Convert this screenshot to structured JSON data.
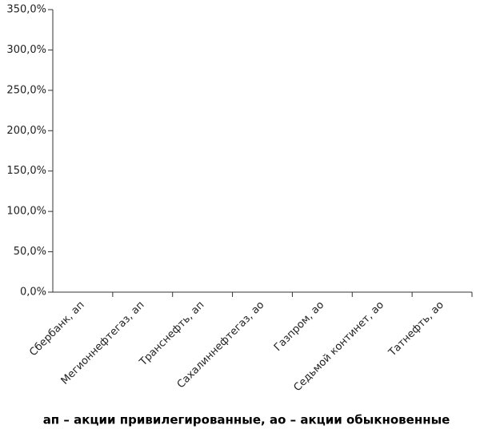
{
  "chart_data": {
    "type": "bar",
    "categories": [
      "Сбербанк, ап",
      "Мегионнефтегаз, ап",
      "Транснефть, ап",
      "Сахалиннефтегаз, ао",
      "Газпром, ао",
      "Седьмой континет, ао",
      "Татнефть, ао"
    ],
    "values": [
      null,
      null,
      null,
      null,
      null,
      null,
      null
    ],
    "color": "#808080",
    "ylim": [
      0,
      350
    ],
    "yticks": [
      {
        "value": 0,
        "label": "0,0%"
      },
      {
        "value": 50,
        "label": "50,0%"
      },
      {
        "value": 100,
        "label": "100,0%"
      },
      {
        "value": 150,
        "label": "150,0%"
      },
      {
        "value": 200,
        "label": "200,0%"
      },
      {
        "value": 250,
        "label": "250,0%"
      },
      {
        "value": 300,
        "label": "300,0%"
      },
      {
        "value": 350,
        "label": "350,0%"
      }
    ],
    "grid": false,
    "footnote": "ап – акции привилегированные, ао – акции обыкновенные"
  }
}
